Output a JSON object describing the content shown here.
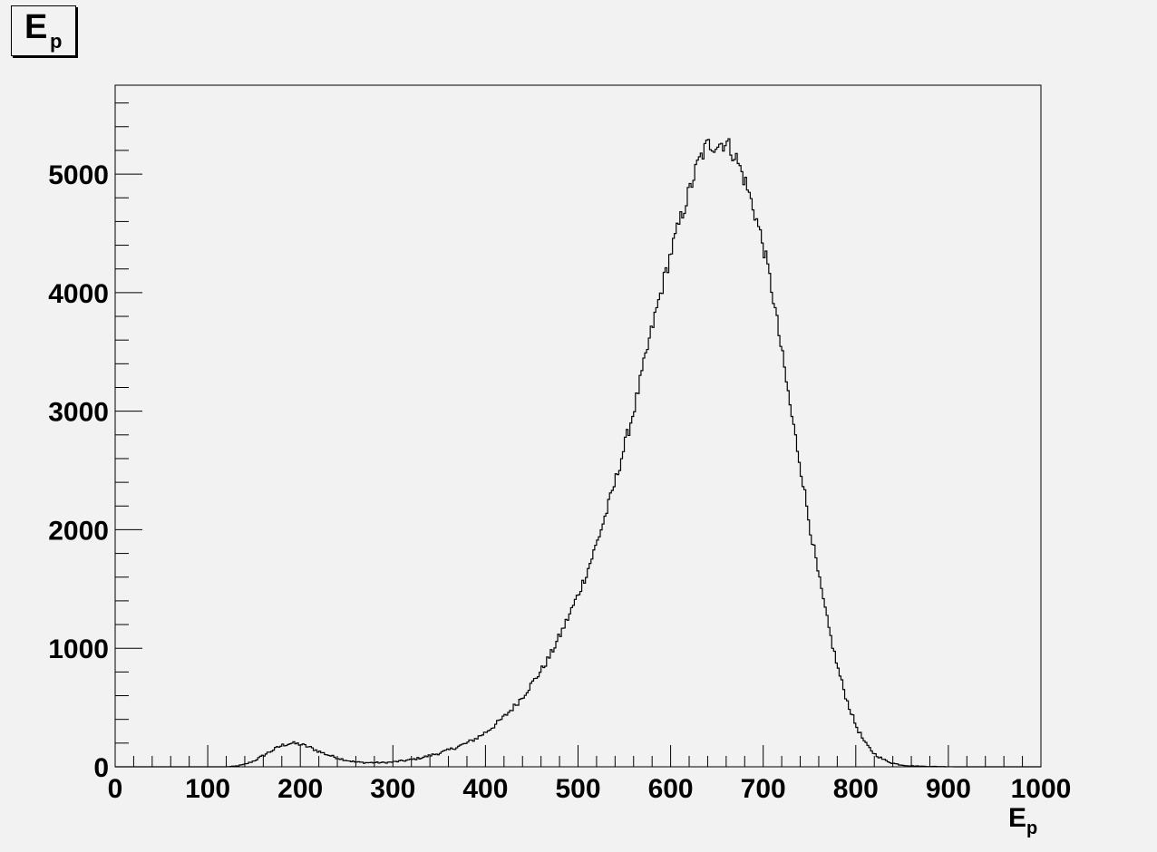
{
  "chart_data": {
    "type": "histogram",
    "title": {
      "main": "E",
      "sub": "p"
    },
    "xlabel": {
      "main": "E",
      "sub": "p"
    },
    "ylabel": "",
    "xlim": [
      0,
      1000
    ],
    "ylim": [
      0,
      5750
    ],
    "grid": false,
    "legend": "none",
    "line_color": "#000000",
    "background": "#f2f2f2",
    "x_ticks": [
      "0",
      "100",
      "200",
      "300",
      "400",
      "500",
      "600",
      "700",
      "800",
      "900",
      "1000"
    ],
    "y_ticks": [
      "0",
      "1000",
      "2000",
      "3000",
      "4000",
      "5000"
    ],
    "x_tick_values": [
      0,
      100,
      200,
      300,
      400,
      500,
      600,
      700,
      800,
      900,
      1000
    ],
    "y_tick_values": [
      0,
      1000,
      2000,
      3000,
      4000,
      5000
    ],
    "x": [
      0,
      20,
      40,
      60,
      80,
      100,
      120,
      130,
      140,
      150,
      160,
      170,
      180,
      190,
      200,
      210,
      220,
      230,
      240,
      250,
      260,
      270,
      280,
      290,
      300,
      310,
      320,
      330,
      340,
      350,
      360,
      370,
      380,
      390,
      400,
      410,
      420,
      430,
      440,
      450,
      460,
      470,
      480,
      490,
      500,
      510,
      520,
      530,
      540,
      550,
      560,
      570,
      580,
      590,
      600,
      610,
      620,
      630,
      640,
      650,
      660,
      670,
      680,
      690,
      700,
      710,
      720,
      730,
      740,
      750,
      760,
      770,
      780,
      790,
      800,
      810,
      820,
      830,
      840,
      850,
      860,
      870,
      880,
      890,
      900,
      910,
      920,
      930,
      940,
      960,
      980,
      1000
    ],
    "y": [
      0,
      0,
      0,
      0,
      0,
      0,
      0,
      5,
      20,
      50,
      95,
      140,
      180,
      200,
      190,
      165,
      130,
      100,
      75,
      55,
      40,
      35,
      35,
      35,
      40,
      50,
      60,
      75,
      95,
      115,
      140,
      170,
      200,
      240,
      290,
      350,
      420,
      500,
      590,
      700,
      810,
      940,
      1100,
      1270,
      1450,
      1650,
      1880,
      2130,
      2400,
      2700,
      3000,
      3350,
      3700,
      4020,
      4330,
      4600,
      4850,
      5100,
      5250,
      5250,
      5270,
      5150,
      4950,
      4700,
      4400,
      4000,
      3500,
      3000,
      2550,
      2050,
      1600,
      1200,
      850,
      570,
      350,
      200,
      110,
      60,
      30,
      15,
      8,
      5,
      3,
      2,
      1,
      0,
      0,
      0,
      0,
      0,
      0,
      0
    ]
  }
}
